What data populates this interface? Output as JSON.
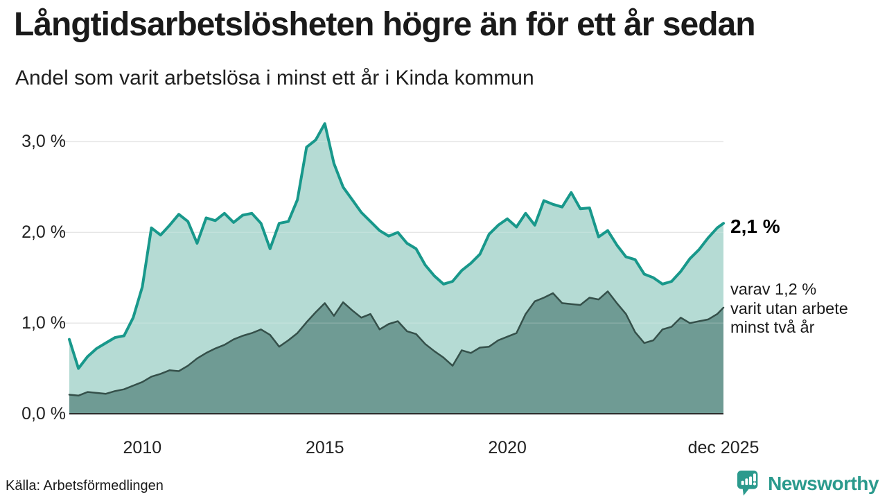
{
  "header": {
    "title": "Långtidsarbetslösheten högre än för ett år sedan",
    "subtitle": "Andel som varit arbetslösa i minst ett år i Kinda kommun"
  },
  "chart_data": {
    "type": "area",
    "title": "Långtidsarbetslösheten högre än för ett år sedan",
    "subtitle": "Andel som varit arbetslösa i minst ett år i Kinda kommun",
    "x_unit": "decimal_year",
    "xlim": [
      2008,
      2025.92
    ],
    "ylim": [
      0,
      3.34
    ],
    "grid": "horizontal",
    "legend_position": "none",
    "x": [
      2008,
      2008.25,
      2008.5,
      2008.75,
      2009,
      2009.25,
      2009.5,
      2009.75,
      2010,
      2010.25,
      2010.5,
      2010.75,
      2011,
      2011.25,
      2011.5,
      2011.75,
      2012,
      2012.25,
      2012.5,
      2012.75,
      2013,
      2013.25,
      2013.5,
      2013.75,
      2014,
      2014.25,
      2014.5,
      2014.75,
      2015,
      2015.25,
      2015.5,
      2015.75,
      2016,
      2016.25,
      2016.5,
      2016.75,
      2017,
      2017.25,
      2017.5,
      2017.75,
      2018,
      2018.25,
      2018.5,
      2018.75,
      2019,
      2019.25,
      2019.5,
      2019.75,
      2020,
      2020.25,
      2020.5,
      2020.75,
      2021,
      2021.25,
      2021.5,
      2021.75,
      2022,
      2022.25,
      2022.5,
      2022.75,
      2023,
      2023.25,
      2023.5,
      2023.75,
      2024,
      2024.25,
      2024.5,
      2024.75,
      2025,
      2025.25,
      2025.5,
      2025.75,
      2025.92
    ],
    "series": [
      {
        "name": "Andel arbetslösa minst ett år",
        "line_color": "#18988b",
        "fill_color": "#b5dbd4",
        "line_width": 4,
        "values": [
          0.82,
          0.5,
          0.63,
          0.72,
          0.78,
          0.84,
          0.86,
          1.06,
          1.4,
          2.05,
          1.97,
          2.08,
          2.2,
          2.12,
          1.88,
          2.16,
          2.13,
          2.21,
          2.11,
          2.19,
          2.21,
          2.1,
          1.82,
          2.1,
          2.12,
          2.36,
          2.94,
          3.02,
          3.2,
          2.76,
          2.5,
          2.36,
          2.22,
          2.12,
          2.02,
          1.96,
          2.0,
          1.88,
          1.82,
          1.64,
          1.52,
          1.43,
          1.46,
          1.58,
          1.66,
          1.76,
          1.98,
          2.08,
          2.15,
          2.06,
          2.21,
          2.08,
          2.35,
          2.31,
          2.28,
          2.44,
          2.26,
          2.27,
          1.95,
          2.02,
          1.86,
          1.73,
          1.7,
          1.54,
          1.5,
          1.43,
          1.46,
          1.57,
          1.71,
          1.81,
          1.94,
          2.05,
          2.1
        ]
      },
      {
        "name": "Varav utan arbete minst två år",
        "line_color": "#35504a",
        "fill_color": "#6f9b94",
        "line_width": 2.5,
        "values": [
          0.21,
          0.2,
          0.24,
          0.23,
          0.22,
          0.25,
          0.27,
          0.31,
          0.35,
          0.41,
          0.44,
          0.48,
          0.47,
          0.53,
          0.61,
          0.67,
          0.72,
          0.76,
          0.82,
          0.86,
          0.89,
          0.93,
          0.87,
          0.74,
          0.81,
          0.89,
          1.01,
          1.12,
          1.22,
          1.08,
          1.23,
          1.14,
          1.06,
          1.1,
          0.93,
          0.99,
          1.02,
          0.91,
          0.88,
          0.77,
          0.69,
          0.62,
          0.53,
          0.7,
          0.67,
          0.73,
          0.74,
          0.81,
          0.85,
          0.89,
          1.1,
          1.24,
          1.28,
          1.33,
          1.22,
          1.21,
          1.2,
          1.28,
          1.26,
          1.35,
          1.22,
          1.1,
          0.9,
          0.78,
          0.81,
          0.93,
          0.96,
          1.06,
          1.0,
          1.02,
          1.04,
          1.1,
          1.17
        ]
      }
    ],
    "yticks": [
      {
        "value": 0,
        "label": "0,0 %"
      },
      {
        "value": 1,
        "label": "1,0 %"
      },
      {
        "value": 2,
        "label": "2,0 %"
      },
      {
        "value": 3,
        "label": "3,0 %"
      }
    ],
    "xticks": [
      {
        "value": 2010,
        "label": "2010"
      },
      {
        "value": 2015,
        "label": "2015"
      },
      {
        "value": 2020,
        "label": "2020"
      },
      {
        "value": 2025.92,
        "label": "dec 2025"
      }
    ],
    "annotations": {
      "total_label": "2,1 %",
      "two_year_label_lines": [
        "varav 1,2 %",
        "varit utan arbete",
        "minst två år"
      ]
    }
  },
  "colors": {
    "accent_teal": "#18988b",
    "light_fill": "#b5dbd4",
    "dark_fill": "#6f9b94",
    "dark_line": "#35504a",
    "grid": "#e1e1e1",
    "axis": "#2b2b2b",
    "logo_teal": "#2b9a8d"
  },
  "footer": {
    "source": "Källa: Arbetsförmedlingen",
    "logo_text": "Newsworthy"
  }
}
